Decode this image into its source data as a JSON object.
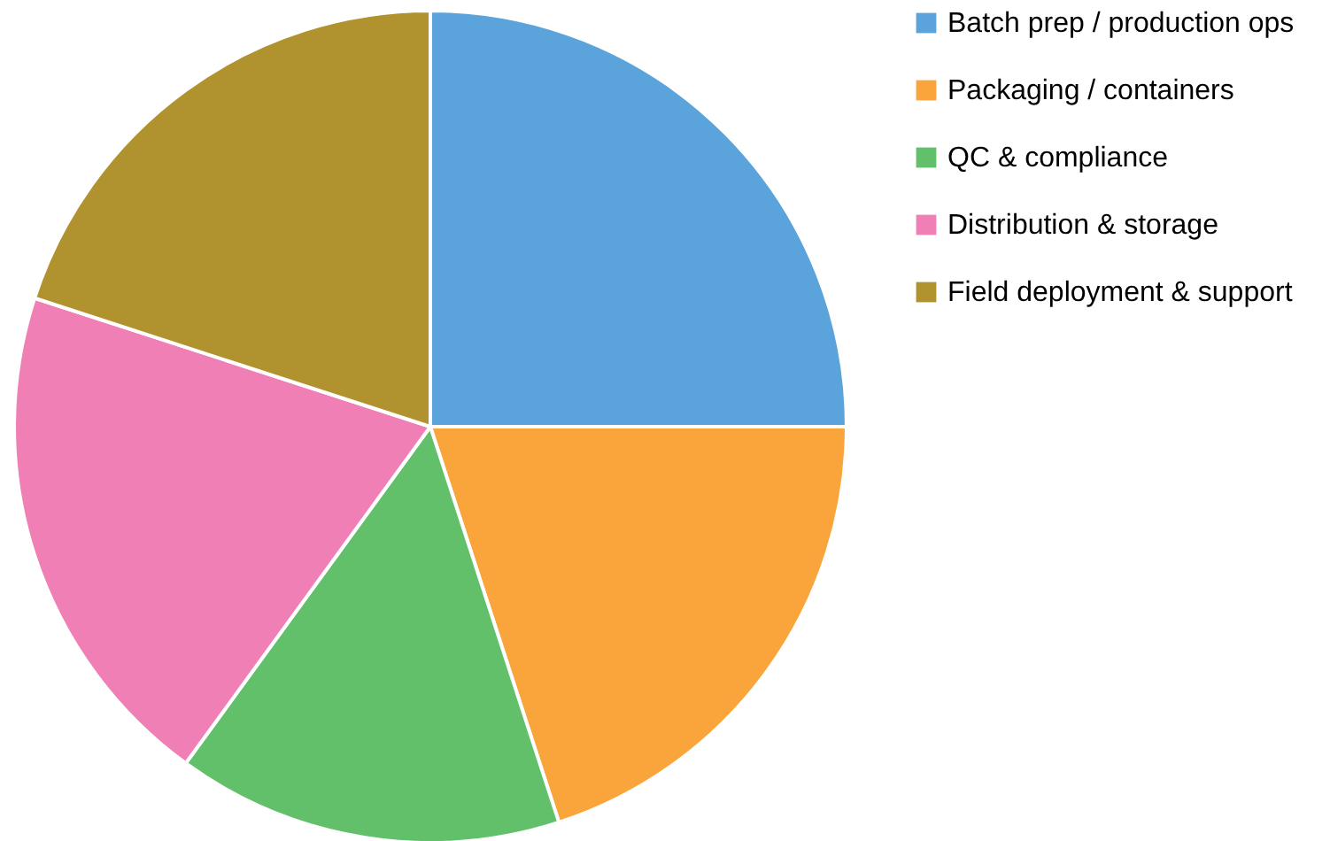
{
  "chart_data": {
    "type": "pie",
    "categories": [
      "Batch prep / production ops",
      "Packaging / containers",
      "QC & compliance",
      "Distribution & storage",
      "Field deployment & support"
    ],
    "values": [
      25,
      20,
      15,
      20,
      20
    ],
    "colors": [
      "#5ba3db",
      "#f9a53b",
      "#62bf6a",
      "#ef7fb4",
      "#b0922f"
    ],
    "legend": "right"
  }
}
